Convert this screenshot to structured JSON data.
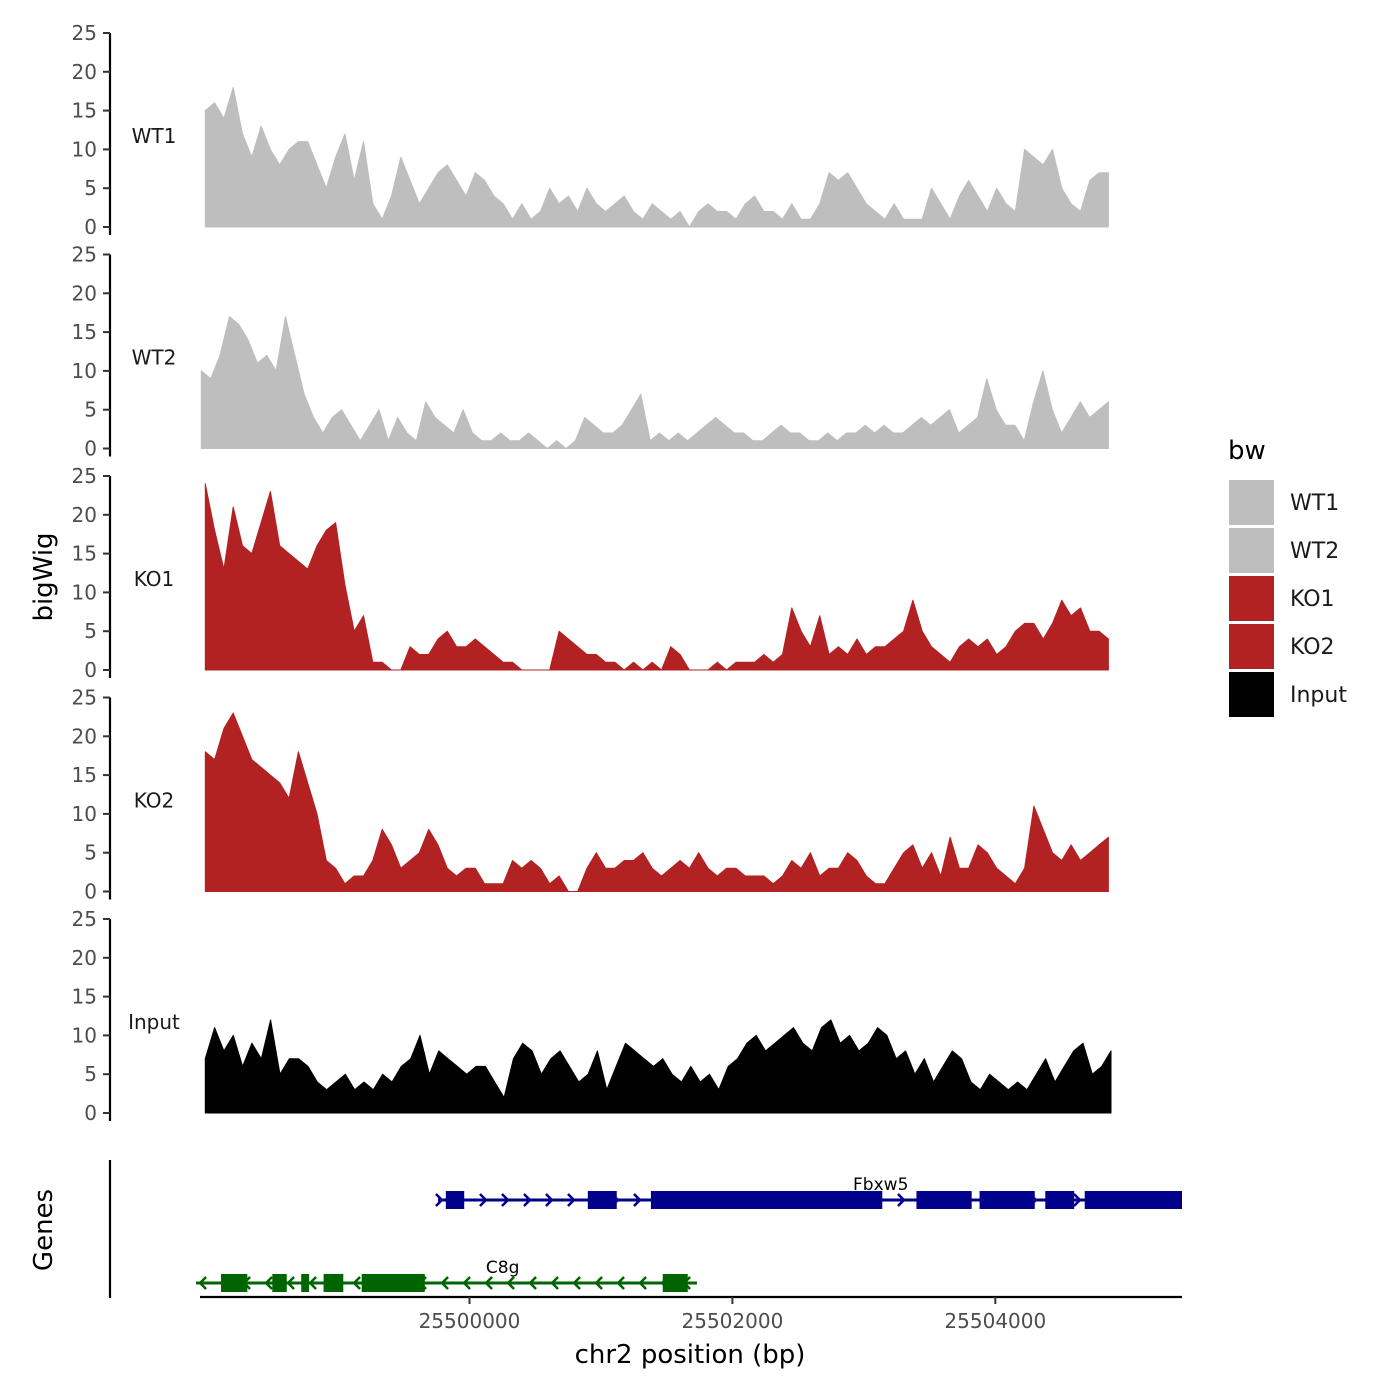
{
  "chart_data": {
    "type": "area",
    "ylabel": "bigWig",
    "xlabel": "chr2 position (bp)",
    "xlim": [
      25497950,
      25505420
    ],
    "x_ticks": [
      25500000,
      25502000,
      25504000
    ],
    "x_tick_labels": [
      "25500000",
      "25502000",
      "25504000"
    ],
    "ylim": [
      0,
      25
    ],
    "y_ticks": [
      0,
      5,
      10,
      15,
      20,
      25
    ],
    "y_tick_labels": [
      "0",
      "5",
      "10",
      "15",
      "20",
      "25"
    ],
    "grid": false,
    "tracks": [
      {
        "name": "WT1",
        "color": "#bebebe",
        "x_start": 25497990,
        "x_end": 25504860,
        "values": [
          15,
          16,
          14,
          18,
          12,
          9,
          13,
          10,
          8,
          10,
          11,
          11,
          8,
          5,
          9,
          12,
          6,
          11,
          3,
          1,
          4,
          9,
          6,
          3,
          5,
          7,
          8,
          6,
          4,
          7,
          6,
          4,
          3,
          1,
          3,
          1,
          2,
          5,
          3,
          4,
          2,
          5,
          3,
          2,
          3,
          4,
          2,
          1,
          3,
          2,
          1,
          2,
          0,
          2,
          3,
          2,
          2,
          1,
          3,
          4,
          2,
          2,
          1,
          3,
          1,
          1,
          3,
          7,
          6,
          7,
          5,
          3,
          2,
          1,
          3,
          1,
          1,
          1,
          5,
          3,
          1,
          4,
          6,
          4,
          2,
          5,
          3,
          2,
          10,
          9,
          8,
          10,
          5,
          3,
          2,
          6,
          7,
          7
        ]
      },
      {
        "name": "WT2",
        "color": "#bebebe",
        "x_start": 25497960,
        "x_end": 25504860,
        "values": [
          10,
          9,
          12,
          17,
          16,
          14,
          11,
          12,
          10,
          17,
          12,
          7,
          4,
          2,
          4,
          5,
          3,
          1,
          3,
          5,
          1,
          4,
          2,
          1,
          6,
          4,
          3,
          2,
          5,
          2,
          1,
          1,
          2,
          1,
          1,
          2,
          1,
          0,
          1,
          0,
          1,
          4,
          3,
          2,
          2,
          3,
          5,
          7,
          1,
          2,
          1,
          2,
          1,
          2,
          3,
          4,
          3,
          2,
          2,
          1,
          1,
          2,
          3,
          2,
          2,
          1,
          1,
          2,
          1,
          2,
          2,
          3,
          2,
          3,
          2,
          2,
          3,
          4,
          3,
          4,
          5,
          2,
          3,
          4,
          9,
          5,
          3,
          3,
          1,
          6,
          10,
          5,
          2,
          4,
          6,
          4,
          5,
          6
        ]
      },
      {
        "name": "KO1",
        "color": "#b22222",
        "x_start": 25497990,
        "x_end": 25504860,
        "values": [
          24,
          18,
          13,
          21,
          16,
          15,
          19,
          23,
          16,
          15,
          14,
          13,
          16,
          18,
          19,
          11,
          5,
          7,
          1,
          1,
          0,
          0,
          3,
          2,
          2,
          4,
          5,
          3,
          3,
          4,
          3,
          2,
          1,
          1,
          0,
          0,
          0,
          0,
          5,
          4,
          3,
          2,
          2,
          1,
          1,
          0,
          1,
          0,
          1,
          0,
          3,
          2,
          0,
          0,
          0,
          1,
          0,
          1,
          1,
          1,
          2,
          1,
          2,
          8,
          5,
          3,
          7,
          2,
          3,
          2,
          4,
          2,
          3,
          3,
          4,
          5,
          9,
          5,
          3,
          2,
          1,
          3,
          4,
          3,
          4,
          2,
          3,
          5,
          6,
          6,
          4,
          6,
          9,
          7,
          8,
          5,
          5,
          4
        ]
      },
      {
        "name": "KO2",
        "color": "#b22222",
        "x_start": 25497990,
        "x_end": 25504860,
        "values": [
          18,
          17,
          21,
          23,
          20,
          17,
          16,
          15,
          14,
          12,
          18,
          14,
          10,
          4,
          3,
          1,
          2,
          2,
          4,
          8,
          6,
          3,
          4,
          5,
          8,
          6,
          3,
          2,
          3,
          3,
          1,
          1,
          1,
          4,
          3,
          4,
          3,
          1,
          2,
          0,
          0,
          3,
          5,
          3,
          3,
          4,
          4,
          5,
          3,
          2,
          3,
          4,
          3,
          5,
          3,
          2,
          3,
          3,
          2,
          2,
          2,
          1,
          2,
          4,
          3,
          5,
          2,
          3,
          3,
          5,
          4,
          2,
          1,
          1,
          3,
          5,
          6,
          3,
          5,
          2,
          7,
          3,
          3,
          6,
          5,
          3,
          2,
          1,
          3,
          11,
          8,
          5,
          4,
          6,
          4,
          5,
          6,
          7
        ]
      },
      {
        "name": "Input",
        "color": "#000000",
        "x_start": 25497990,
        "x_end": 25504880,
        "values": [
          7,
          11,
          8,
          10,
          6,
          9,
          7,
          12,
          5,
          7,
          7,
          6,
          4,
          3,
          4,
          5,
          3,
          4,
          3,
          5,
          4,
          6,
          7,
          10,
          5,
          8,
          7,
          6,
          5,
          6,
          6,
          4,
          2,
          7,
          9,
          8,
          5,
          7,
          8,
          6,
          4,
          5,
          8,
          3,
          6,
          9,
          8,
          7,
          6,
          7,
          5,
          4,
          6,
          4,
          5,
          3,
          6,
          7,
          9,
          10,
          8,
          9,
          10,
          11,
          9,
          8,
          11,
          12,
          9,
          10,
          8,
          9,
          11,
          10,
          7,
          8,
          5,
          7,
          4,
          6,
          8,
          7,
          4,
          3,
          5,
          4,
          3,
          4,
          3,
          5,
          7,
          4,
          6,
          8,
          9,
          5,
          6,
          8
        ]
      }
    ],
    "legend": {
      "title": "bw",
      "placement": "right",
      "entries": [
        {
          "label": "WT1",
          "color": "#bebebe"
        },
        {
          "label": "WT2",
          "color": "#bebebe"
        },
        {
          "label": "KO1",
          "color": "#b22222"
        },
        {
          "label": "KO2",
          "color": "#b22222"
        },
        {
          "label": "Input",
          "color": "#000000"
        }
      ]
    },
    "genes_label": "Genes",
    "genes": [
      {
        "name": "Fbxw5",
        "strand": "+",
        "color": "#00008b",
        "start": 25499760,
        "end": 25505420,
        "exons": [
          [
            25499820,
            25499960
          ],
          [
            25500900,
            25501120
          ],
          [
            25501380,
            25503140
          ],
          [
            25503400,
            25503820
          ],
          [
            25503880,
            25504300
          ],
          [
            25504380,
            25504600
          ],
          [
            25504680,
            25505420
          ]
        ]
      },
      {
        "name": "C8g",
        "strand": "-",
        "color": "#006400",
        "start": 25497920,
        "end": 25501730,
        "exons": [
          [
            25498110,
            25498310
          ],
          [
            25498500,
            25498610
          ],
          [
            25498720,
            25498780
          ],
          [
            25498890,
            25499040
          ],
          [
            25499180,
            25499660
          ],
          [
            25501470,
            25501660
          ]
        ]
      }
    ]
  }
}
